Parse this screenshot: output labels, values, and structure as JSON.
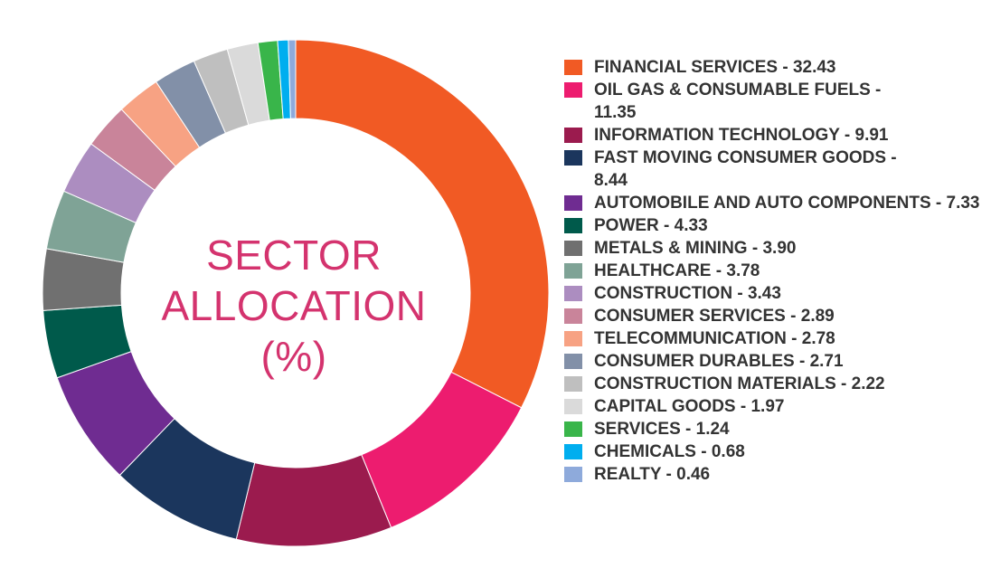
{
  "chart_data": {
    "type": "pie",
    "style": "donut",
    "title_lines": [
      "SECTOR",
      "ALLOCATION",
      "(%)"
    ],
    "legend_position": "right",
    "slices": [
      {
        "label": "FINANCIAL SERVICES",
        "value": 32.43,
        "display": "32.43",
        "color": "#f15a24"
      },
      {
        "label": "OIL GAS & CONSUMABLE FUELS",
        "value": 11.35,
        "display": "11.35",
        "color": "#ed1c6f"
      },
      {
        "label": "INFORMATION TECHNOLOGY",
        "value": 9.91,
        "display": "9.91",
        "color": "#9b1b4e"
      },
      {
        "label": "FAST MOVING CONSUMER GOODS",
        "value": 8.44,
        "display": "8.44",
        "color": "#1b365d"
      },
      {
        "label": "AUTOMOBILE AND AUTO COMPONENTS",
        "value": 7.33,
        "display": "7.33",
        "color": "#6f2c91"
      },
      {
        "label": "POWER",
        "value": 4.33,
        "display": "4.33",
        "color": "#005a4b"
      },
      {
        "label": "METALS & MINING",
        "value": 3.9,
        "display": "3.90",
        "color": "#707070"
      },
      {
        "label": "HEALTHCARE",
        "value": 3.78,
        "display": "3.78",
        "color": "#7fa396"
      },
      {
        "label": "CONSTRUCTION",
        "value": 3.43,
        "display": "3.43",
        "color": "#ac8dc0"
      },
      {
        "label": "CONSUMER SERVICES",
        "value": 2.89,
        "display": "2.89",
        "color": "#c9849a"
      },
      {
        "label": "TELECOMMUNICATION",
        "value": 2.78,
        "display": "2.78",
        "color": "#f7a283"
      },
      {
        "label": "CONSUMER DURABLES",
        "value": 2.71,
        "display": "2.71",
        "color": "#8290a8"
      },
      {
        "label": "CONSTRUCTION MATERIALS",
        "value": 2.22,
        "display": "2.22",
        "color": "#bfbfbf"
      },
      {
        "label": "CAPITAL GOODS",
        "value": 1.97,
        "display": "1.97",
        "color": "#dadada"
      },
      {
        "label": "SERVICES",
        "value": 1.24,
        "display": "1.24",
        "color": "#39b54a"
      },
      {
        "label": "CHEMICALS",
        "value": 0.68,
        "display": "0.68",
        "color": "#00aeef"
      },
      {
        "label": "REALTY",
        "value": 0.46,
        "display": "0.46",
        "color": "#8eaadb"
      }
    ]
  }
}
